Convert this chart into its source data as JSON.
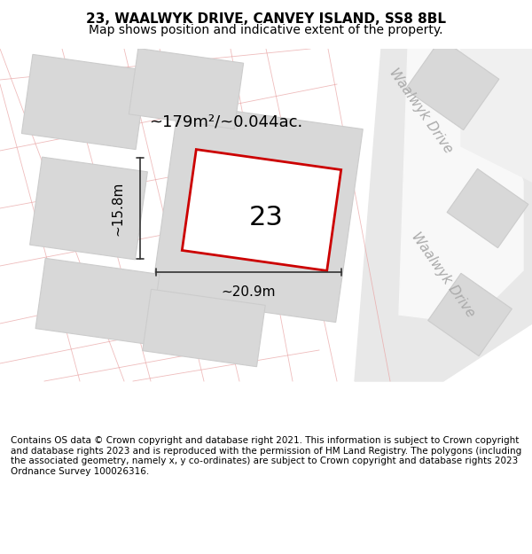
{
  "title": "23, WAALWYK DRIVE, CANVEY ISLAND, SS8 8BL",
  "subtitle": "Map shows position and indicative extent of the property.",
  "footer": "Contains OS data © Crown copyright and database right 2021. This information is subject to Crown copyright and database rights 2023 and is reproduced with the permission of HM Land Registry. The polygons (including the associated geometry, namely x, y co-ordinates) are subject to Crown copyright and database rights 2023 Ordnance Survey 100026316.",
  "area_label": "~179m²/~0.044ac.",
  "width_label": "~20.9m",
  "height_label": "~15.8m",
  "plot_number": "23",
  "bg_color": "#f5f5f5",
  "map_bg": "#f0f0f0",
  "block_color": "#d8d8d8",
  "road_color": "#e8e8e8",
  "plot_outline_color": "#cc0000",
  "dimension_color": "#333333",
  "road_label_color": "#999999",
  "road_label_size": 11,
  "title_fontsize": 11,
  "subtitle_fontsize": 10,
  "plot_number_fontsize": 22,
  "area_fontsize": 13,
  "dim_fontsize": 11,
  "footer_fontsize": 7.5
}
